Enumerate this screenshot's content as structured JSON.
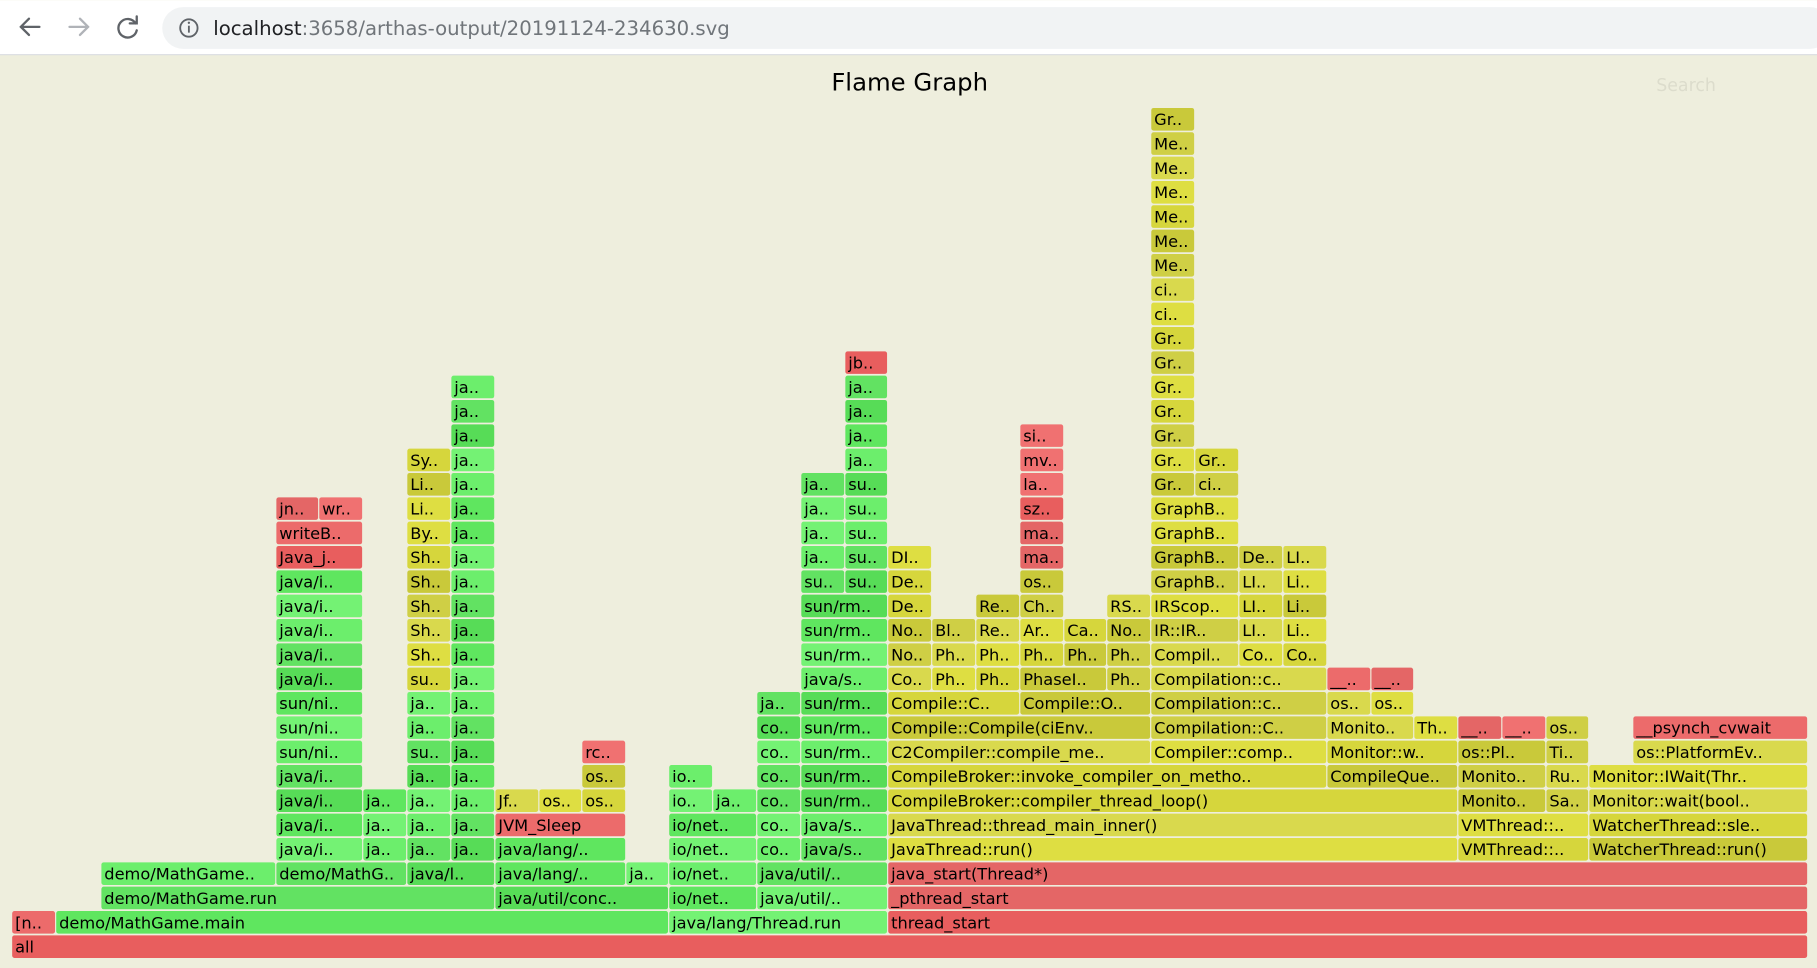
{
  "browser": {
    "url_host": "localhost",
    "url_path": ":3658/arthas-output/20191124-234630.svg"
  },
  "title": "Flame Graph",
  "search": "Search",
  "rows": [
    [
      "all"
    ],
    [
      "[n..",
      "demo/MathGame.main",
      "java/lang/Thread.run",
      "thread_start"
    ],
    [
      "demo/MathGame.run",
      "java/util/conc..",
      "io/net..",
      "java/util/..",
      "_pthread_start"
    ],
    [
      "demo/MathGame..",
      "demo/MathG..",
      "java/l..",
      "java/lang/..",
      "ja..",
      "io/net..",
      "java/util/..",
      "java_start(Thread*)"
    ],
    [
      "java/i..",
      "ja..",
      "ja..",
      "ja..",
      "java/lang/..",
      "io/net..",
      "co..",
      "java/s..",
      "JavaThread::run()",
      "VMThread::..",
      "WatcherThread::run()"
    ],
    [
      "java/i..",
      "ja..",
      "ja..",
      "ja..",
      "JVM_Sleep",
      "io/net..",
      "co..",
      "java/s..",
      "JavaThread::thread_main_inner()",
      "VMThread::..",
      "WatcherThread::sle.."
    ],
    [
      "java/i..",
      "ja..",
      "ja..",
      "ja..",
      "Jf..",
      "os..",
      "os..",
      "io..",
      "ja..",
      "co..",
      "sun/rm..",
      "CompileBroker::compiler_thread_loop()",
      "Monito..",
      "Sa..",
      "Monitor::wait(bool.."
    ],
    [
      "java/i..",
      "ja..",
      "ja..",
      "os..",
      "io..",
      "co..",
      "sun/rm..",
      "CompileBroker::invoke_compiler_on_metho..",
      "CompileQue..",
      "Monito..",
      "Ru..",
      "Monitor::IWait(Thr.."
    ],
    [
      "sun/ni..",
      "su..",
      "ja..",
      "rc..",
      "co..",
      "sun/rm..",
      "C2Compiler::compile_me..",
      "Compiler::comp..",
      "Monitor::w..",
      "os::Pl..",
      "Ti..",
      "os::PlatformEv.."
    ],
    [
      "sun/ni..",
      "ja..",
      "ja..",
      "co..",
      "sun/rm..",
      "Compile::Compile(ciEnv..",
      "Compilation::C..",
      "Monito..",
      "Th..",
      "__..",
      "__..",
      "os..",
      "__psynch_cvwait"
    ],
    [
      "sun/ni..",
      "ja..",
      "ja..",
      "ja..",
      "sun/rm..",
      "Compile::C..",
      "Compile::O..",
      "Compilation::c..",
      "os..",
      "os.."
    ],
    [
      "java/i..",
      "su..",
      "ja..",
      "java/s..",
      "Co..",
      "Ph..",
      "Ph..",
      "PhaseI..",
      "Ph..",
      "Compilation::c..",
      "__..",
      "__.."
    ],
    [
      "java/i..",
      "Sh..",
      "ja..",
      "sun/rm..",
      "No..",
      "Ph..",
      "Ph..",
      "Ph..",
      "Ph..",
      "Ph..",
      "Compil..",
      "Co..",
      "Co.."
    ],
    [
      "java/i..",
      "Sh..",
      "ja..",
      "sun/rm..",
      "No..",
      "Bl..",
      "Re..",
      "Ar..",
      "Ca..",
      "No..",
      "IR::IR..",
      "LI..",
      "Li.."
    ],
    [
      "java/i..",
      "Sh..",
      "ja..",
      "sun/rm..",
      "De..",
      "Re..",
      "Ch..",
      "RS..",
      "IRScop..",
      "LI..",
      "Li.."
    ],
    [
      "java/i..",
      "Sh..",
      "ja..",
      "su..",
      "su..",
      "De..",
      "os..",
      "GraphB..",
      "LI..",
      "Li.."
    ],
    [
      "Java_j..",
      "Sh..",
      "ja..",
      "ja..",
      "su..",
      "DI..",
      "ma..",
      "GraphB..",
      "De..",
      "LI.."
    ],
    [
      "writeB..",
      "By..",
      "ja..",
      "ja..",
      "su..",
      "ma..",
      "GraphB.."
    ],
    [
      "jn..",
      "wr..",
      "Li..",
      "ja..",
      "ja..",
      "su..",
      "sz..",
      "GraphB.."
    ],
    [
      "Li..",
      "ja..",
      "ja..",
      "su..",
      "la..",
      "Gr..",
      "ci.."
    ],
    [
      "Sy..",
      "ja..",
      "ja..",
      "mv..",
      "Gr..",
      "Gr.."
    ],
    [
      "ja..",
      "ja..",
      "si..",
      "Gr.."
    ],
    [
      "ja..",
      "ja..",
      "Gr.."
    ],
    [
      "ja..",
      "ja..",
      "Gr.."
    ],
    [
      "jb..",
      "Gr.."
    ],
    [
      "Gr.."
    ],
    [
      "ci.."
    ],
    [
      "ci.."
    ],
    [
      "Me.."
    ],
    [
      "Me.."
    ],
    [
      "Me.."
    ],
    [
      "Me.."
    ],
    [
      "Me.."
    ],
    [
      "Me.."
    ],
    [
      "Gr.."
    ]
  ]
}
